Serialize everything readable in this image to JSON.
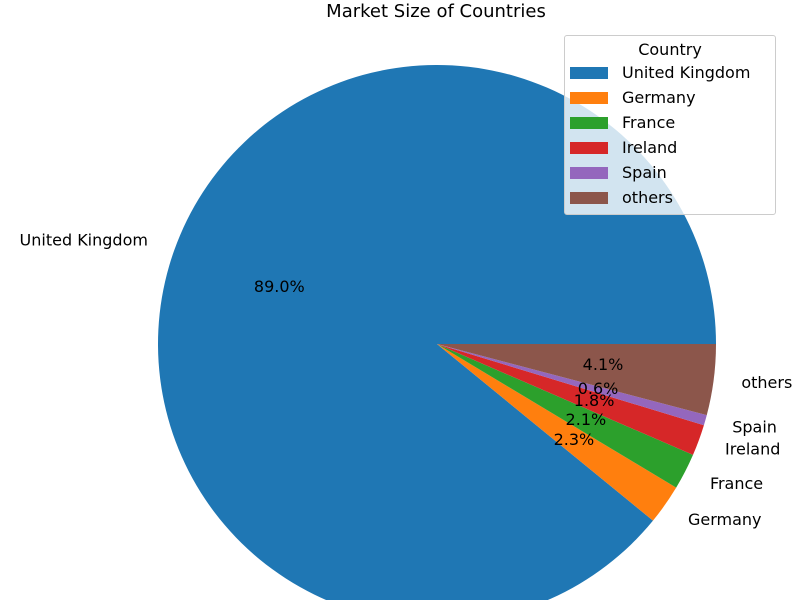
{
  "chart_data": {
    "type": "pie",
    "title": "Market Size of Countries",
    "labels": [
      "United Kingdom",
      "Germany",
      "France",
      "Ireland",
      "Spain",
      "others"
    ],
    "values": [
      89.0,
      2.3,
      2.1,
      1.8,
      0.6,
      4.1
    ],
    "percent_labels": [
      "89.0%",
      "2.3%",
      "2.1%",
      "1.8%",
      "0.6%",
      "4.1%"
    ],
    "colors": [
      "#1f77b4",
      "#ff7f0e",
      "#2ca02c",
      "#d62728",
      "#9467bd",
      "#8c564b"
    ],
    "start_angle": 0,
    "direction": "counterclockwise",
    "legend": {
      "title": "Country",
      "position": "top-right"
    }
  }
}
